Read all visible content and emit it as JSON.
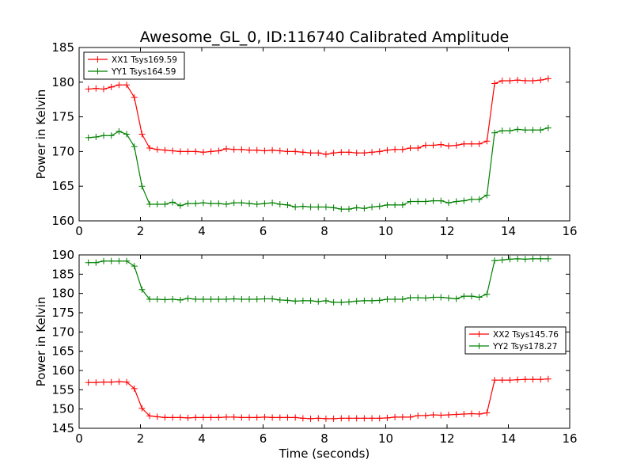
{
  "figure": {
    "title": "Awesome_GL_0, ID:116740 Calibrated Amplitude"
  },
  "chart_data": [
    {
      "type": "line",
      "title": "Awesome_GL_0, ID:116740 Calibrated Amplitude",
      "xlabel": "",
      "ylabel": "Power in Kelvin",
      "xlim": [
        0,
        16
      ],
      "ylim": [
        160,
        185
      ],
      "xticks": [
        0,
        2,
        4,
        6,
        8,
        10,
        12,
        14,
        16
      ],
      "yticks": [
        160,
        165,
        170,
        175,
        180,
        185
      ],
      "grid": false,
      "legend_position": "upper-left",
      "marker": "+",
      "x": [
        0.3,
        0.55,
        0.8,
        1.05,
        1.3,
        1.55,
        1.8,
        2.05,
        2.3,
        2.55,
        2.8,
        3.05,
        3.3,
        3.55,
        3.8,
        4.05,
        4.3,
        4.55,
        4.8,
        5.05,
        5.3,
        5.55,
        5.8,
        6.05,
        6.3,
        6.55,
        6.8,
        7.05,
        7.3,
        7.55,
        7.8,
        8.05,
        8.3,
        8.55,
        8.8,
        9.05,
        9.3,
        9.55,
        9.8,
        10.05,
        10.3,
        10.55,
        10.8,
        11.05,
        11.3,
        11.55,
        11.8,
        12.05,
        12.3,
        12.55,
        12.8,
        13.05,
        13.3,
        13.55,
        13.8,
        14.05,
        14.3,
        14.55,
        14.8,
        15.05,
        15.3
      ],
      "series": [
        {
          "name": "XX1 Tsys169.59",
          "color": "#ff0000",
          "values": [
            179.0,
            179.1,
            179.0,
            179.3,
            179.6,
            179.6,
            177.8,
            172.5,
            170.5,
            170.3,
            170.2,
            170.1,
            170.0,
            170.0,
            170.0,
            169.9,
            170.0,
            170.1,
            170.4,
            170.3,
            170.3,
            170.2,
            170.2,
            170.1,
            170.2,
            170.1,
            170.0,
            170.0,
            169.9,
            169.8,
            169.8,
            169.6,
            169.8,
            169.9,
            169.9,
            169.8,
            169.8,
            169.9,
            170.0,
            170.2,
            170.3,
            170.3,
            170.5,
            170.5,
            170.9,
            170.9,
            171.0,
            170.8,
            170.9,
            171.1,
            171.1,
            171.1,
            171.5,
            179.8,
            180.2,
            180.2,
            180.3,
            180.2,
            180.2,
            180.3,
            180.5
          ]
        },
        {
          "name": "YY1 Tsys164.59",
          "color": "#008000",
          "values": [
            172.0,
            172.1,
            172.3,
            172.3,
            172.9,
            172.5,
            170.7,
            165.0,
            162.4,
            162.4,
            162.4,
            162.7,
            162.2,
            162.5,
            162.5,
            162.6,
            162.5,
            162.5,
            162.4,
            162.6,
            162.6,
            162.5,
            162.4,
            162.5,
            162.6,
            162.4,
            162.3,
            162.0,
            162.1,
            162.0,
            162.0,
            162.0,
            161.9,
            161.7,
            161.7,
            161.9,
            161.8,
            162.0,
            162.1,
            162.3,
            162.3,
            162.3,
            162.8,
            162.8,
            162.8,
            162.9,
            162.9,
            162.6,
            162.8,
            162.9,
            163.1,
            163.1,
            163.7,
            172.7,
            173.0,
            173.0,
            173.2,
            173.1,
            173.1,
            173.1,
            173.4
          ]
        }
      ]
    },
    {
      "type": "line",
      "title": "",
      "xlabel": "Time (seconds)",
      "ylabel": "Power in Kelvin",
      "xlim": [
        0,
        16
      ],
      "ylim": [
        145,
        190
      ],
      "xticks": [
        0,
        2,
        4,
        6,
        8,
        10,
        12,
        14,
        16
      ],
      "yticks": [
        145,
        150,
        155,
        160,
        165,
        170,
        175,
        180,
        185,
        190
      ],
      "grid": false,
      "legend_position": "center-right",
      "marker": "+",
      "x": [
        0.3,
        0.55,
        0.8,
        1.05,
        1.3,
        1.55,
        1.8,
        2.05,
        2.3,
        2.55,
        2.8,
        3.05,
        3.3,
        3.55,
        3.8,
        4.05,
        4.3,
        4.55,
        4.8,
        5.05,
        5.3,
        5.55,
        5.8,
        6.05,
        6.3,
        6.55,
        6.8,
        7.05,
        7.3,
        7.55,
        7.8,
        8.05,
        8.3,
        8.55,
        8.8,
        9.05,
        9.3,
        9.55,
        9.8,
        10.05,
        10.3,
        10.55,
        10.8,
        11.05,
        11.3,
        11.55,
        11.8,
        12.05,
        12.3,
        12.55,
        12.8,
        13.05,
        13.3,
        13.55,
        13.8,
        14.05,
        14.3,
        14.55,
        14.8,
        15.05,
        15.3
      ],
      "series": [
        {
          "name": "XX2 Tsys145.76",
          "color": "#ff0000",
          "values": [
            156.9,
            156.9,
            157.0,
            157.0,
            157.1,
            157.0,
            155.3,
            150.2,
            148.2,
            148.0,
            147.8,
            147.8,
            147.8,
            147.7,
            147.8,
            147.8,
            147.8,
            147.8,
            147.9,
            147.9,
            147.8,
            147.8,
            147.8,
            147.9,
            147.8,
            147.8,
            147.8,
            147.8,
            147.6,
            147.5,
            147.6,
            147.5,
            147.5,
            147.6,
            147.6,
            147.6,
            147.6,
            147.6,
            147.6,
            147.7,
            147.9,
            147.9,
            147.9,
            148.3,
            148.3,
            148.5,
            148.4,
            148.5,
            148.6,
            148.7,
            148.8,
            148.7,
            149.0,
            157.5,
            157.5,
            157.5,
            157.6,
            157.7,
            157.7,
            157.7,
            157.8
          ]
        },
        {
          "name": "YY2 Tsys178.27",
          "color": "#008000",
          "values": [
            188.0,
            188.0,
            188.4,
            188.4,
            188.4,
            188.4,
            187.1,
            181.0,
            178.5,
            178.5,
            178.4,
            178.5,
            178.3,
            178.7,
            178.5,
            178.5,
            178.5,
            178.5,
            178.5,
            178.6,
            178.5,
            178.5,
            178.5,
            178.6,
            178.6,
            178.3,
            178.2,
            178.0,
            178.1,
            178.1,
            177.9,
            178.1,
            177.7,
            177.7,
            177.8,
            178.0,
            178.1,
            178.1,
            178.2,
            178.5,
            178.5,
            178.5,
            178.9,
            178.9,
            178.8,
            179.0,
            179.0,
            178.8,
            178.6,
            179.3,
            179.3,
            179.0,
            179.8,
            188.5,
            188.7,
            188.9,
            189.0,
            188.9,
            189.0,
            189.0,
            189.0
          ]
        }
      ]
    }
  ]
}
